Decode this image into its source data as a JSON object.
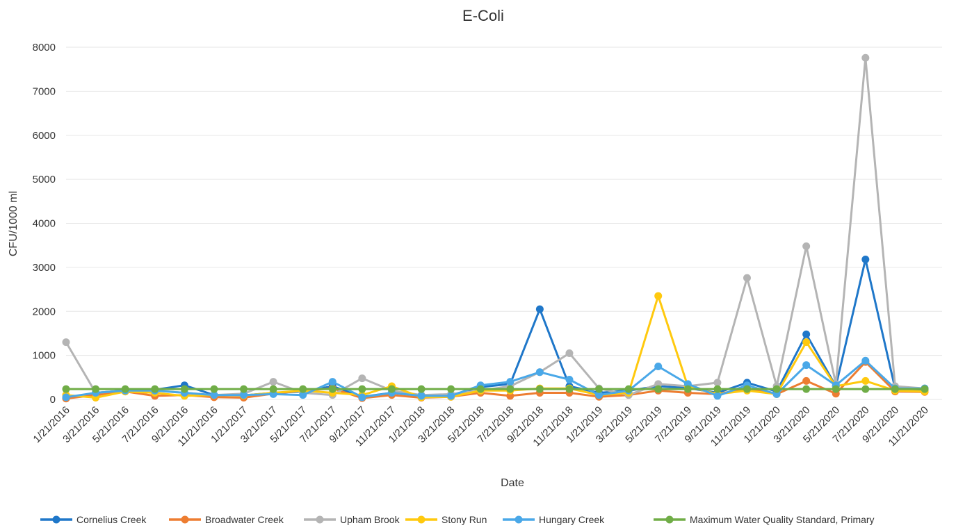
{
  "chart_data": {
    "type": "line",
    "title": "E-Coli",
    "xlabel": "Date",
    "ylabel": "CFU/1000 ml",
    "ylim": [
      0,
      8000
    ],
    "yticks": [
      0,
      1000,
      2000,
      3000,
      4000,
      5000,
      6000,
      7000,
      8000
    ],
    "grid": true,
    "legend_position": "bottom",
    "x": [
      "1/21/2016",
      "3/21/2016",
      "5/21/2016",
      "7/21/2016",
      "9/21/2016",
      "11/21/2016",
      "1/21/2017",
      "3/21/2017",
      "5/21/2017",
      "7/21/2017",
      "9/21/2017",
      "11/21/2017",
      "1/21/2018",
      "3/21/2018",
      "5/21/2018",
      "7/21/2018",
      "9/21/2018",
      "11/21/2018",
      "1/21/2019",
      "3/21/2019",
      "5/21/2019",
      "7/21/2019",
      "9/21/2019",
      "11/21/2019",
      "1/21/2020",
      "3/21/2020",
      "5/21/2020",
      "7/21/2020",
      "9/21/2020",
      "11/21/2020"
    ],
    "series": [
      {
        "name": "Cornelius Creek",
        "color": "#1f77c9",
        "values": [
          30,
          150,
          200,
          220,
          320,
          100,
          90,
          150,
          180,
          300,
          60,
          150,
          80,
          100,
          280,
          350,
          2050,
          300,
          150,
          200,
          300,
          260,
          150,
          380,
          180,
          1480,
          300,
          3180,
          250,
          200
        ]
      },
      {
        "name": "Broadwater Creek",
        "color": "#ed7d31",
        "values": [
          20,
          100,
          180,
          80,
          100,
          50,
          40,
          130,
          200,
          250,
          30,
          100,
          40,
          60,
          150,
          80,
          150,
          150,
          60,
          100,
          200,
          150,
          120,
          250,
          120,
          420,
          130,
          850,
          180,
          170
        ]
      },
      {
        "name": "Upham Brook",
        "color": "#b4b4b4",
        "values": [
          1300,
          150,
          200,
          200,
          150,
          100,
          130,
          400,
          150,
          100,
          480,
          200,
          100,
          120,
          200,
          300,
          620,
          1050,
          250,
          100,
          350,
          300,
          380,
          2760,
          300,
          3480,
          350,
          7760,
          300,
          250
        ]
      },
      {
        "name": "Stony Run",
        "color": "#ffc90e",
        "values": [
          100,
          40,
          180,
          150,
          80,
          100,
          90,
          150,
          200,
          150,
          100,
          300,
          50,
          60,
          200,
          200,
          250,
          250,
          100,
          150,
          2350,
          300,
          120,
          200,
          120,
          1300,
          300,
          420,
          200,
          180
        ]
      },
      {
        "name": "Hungary Creek",
        "color": "#4aa8e8",
        "values": [
          50,
          150,
          200,
          200,
          150,
          100,
          100,
          120,
          100,
          400,
          50,
          150,
          80,
          80,
          320,
          400,
          620,
          450,
          100,
          200,
          750,
          350,
          80,
          320,
          120,
          780,
          320,
          880,
          250,
          250
        ]
      },
      {
        "name": "Maximum Water Quality Standard, Primary",
        "color": "#70ad47",
        "values": [
          235,
          235,
          235,
          235,
          235,
          235,
          235,
          235,
          235,
          235,
          235,
          235,
          235,
          235,
          235,
          235,
          235,
          235,
          235,
          235,
          235,
          235,
          235,
          235,
          235,
          235,
          235,
          235,
          235,
          235
        ]
      }
    ]
  }
}
